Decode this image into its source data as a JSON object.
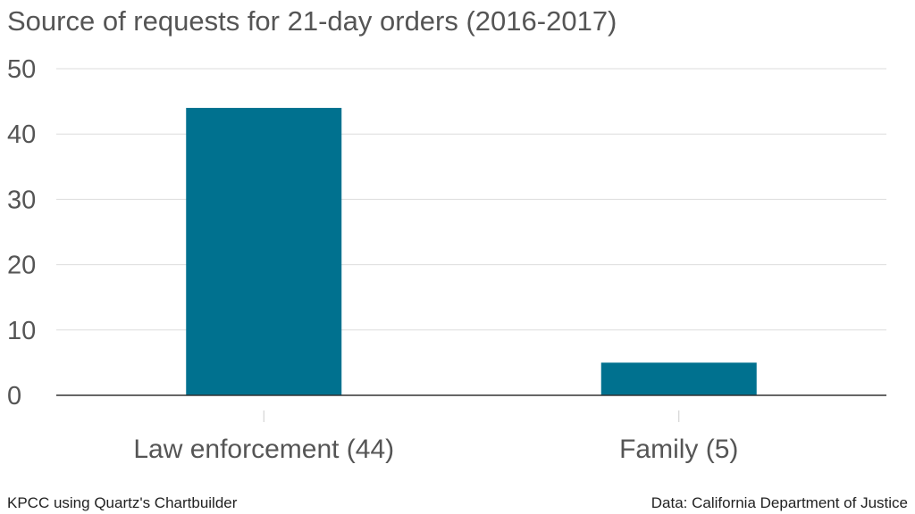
{
  "chart_data": {
    "type": "bar",
    "title": "Source of requests for 21-day orders (2016-2017)",
    "categories": [
      "Law enforcement (44)",
      "Family (5)"
    ],
    "values": [
      44,
      5
    ],
    "ylim": [
      0,
      50
    ],
    "yticks": [
      0,
      10,
      20,
      30,
      40,
      50
    ],
    "xlabel": "",
    "ylabel": "",
    "grid": true,
    "bar_color": "#00718f"
  },
  "footer": {
    "credit": "KPCC using Quartz's Chartbuilder",
    "source": "Data: California Department of Justice"
  }
}
